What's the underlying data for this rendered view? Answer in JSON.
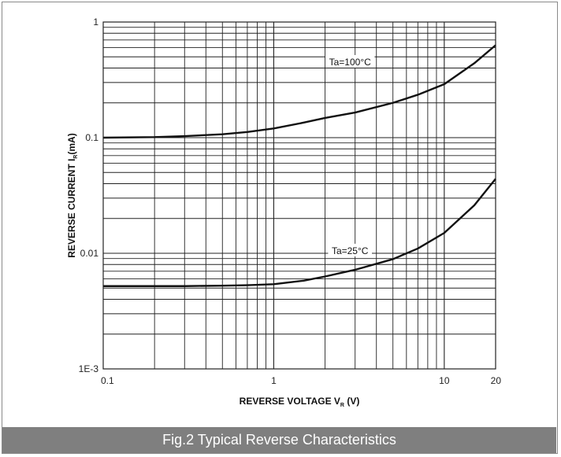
{
  "caption": "Fig.2 Typical Reverse Characteristics",
  "chart_data": {
    "type": "line",
    "title": "",
    "xlabel": "REVERSE VOLTAGE  V",
    "xlabel_sub": "R",
    "xlabel_unit": " (V)",
    "ylabel": "REVERSE CURRENT  I",
    "ylabel_sub": "R",
    "ylabel_unit": "(mA)",
    "x_scale": "log",
    "y_scale": "log",
    "xlim": [
      0.1,
      20
    ],
    "ylim": [
      0.001,
      1
    ],
    "x_ticks": [
      {
        "value": 0.1,
        "label": "0.1"
      },
      {
        "value": 1,
        "label": "1"
      },
      {
        "value": 10,
        "label": "10"
      },
      {
        "value": 20,
        "label": "20"
      }
    ],
    "y_ticks": [
      {
        "value": 0.001,
        "label": "1E-3"
      },
      {
        "value": 0.01,
        "label": "0.01"
      },
      {
        "value": 0.1,
        "label": "0.1"
      },
      {
        "value": 1,
        "label": "1"
      }
    ],
    "grid": true,
    "series": [
      {
        "name": "Ta=100°C",
        "label_at": [
          2.8,
          0.45
        ],
        "x": [
          0.1,
          0.2,
          0.3,
          0.5,
          0.7,
          1,
          1.5,
          2,
          3,
          5,
          7,
          10,
          15,
          20
        ],
        "y": [
          0.1,
          0.101,
          0.103,
          0.107,
          0.112,
          0.12,
          0.135,
          0.148,
          0.165,
          0.2,
          0.235,
          0.29,
          0.44,
          0.63
        ]
      },
      {
        "name": "Ta=25°C",
        "label_at": [
          2.8,
          0.0105
        ],
        "x": [
          0.1,
          0.2,
          0.3,
          0.5,
          0.7,
          1,
          1.5,
          2,
          3,
          5,
          7,
          10,
          15,
          20
        ],
        "y": [
          0.0052,
          0.0052,
          0.0052,
          0.00525,
          0.0053,
          0.0054,
          0.0058,
          0.0063,
          0.0072,
          0.0089,
          0.011,
          0.015,
          0.026,
          0.044
        ]
      }
    ]
  }
}
